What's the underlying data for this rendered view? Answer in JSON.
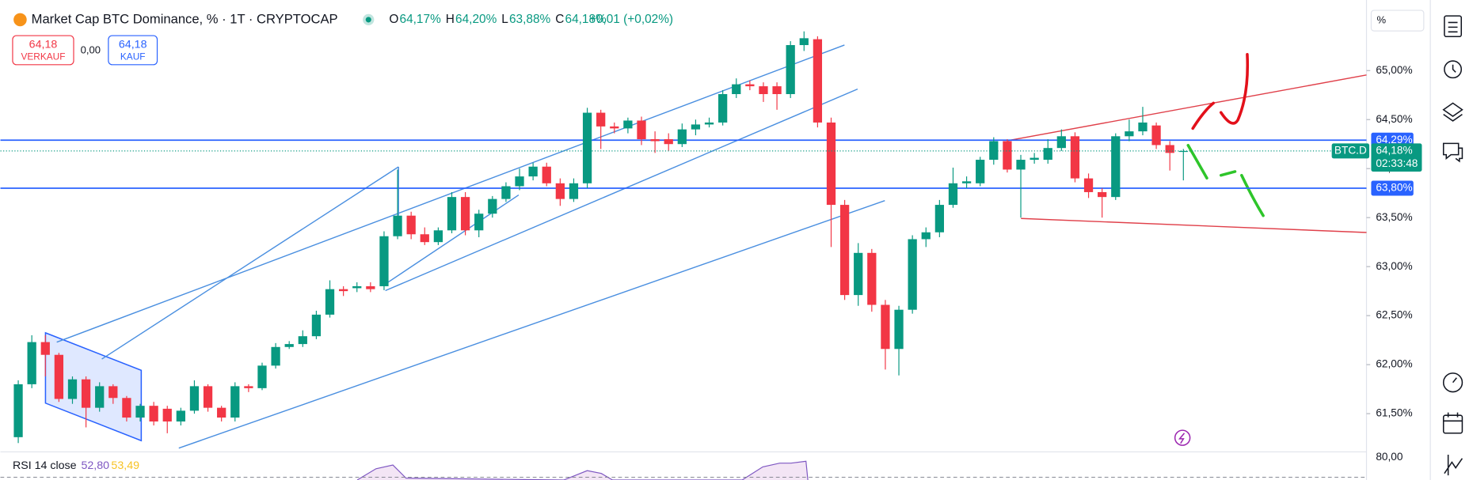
{
  "chart_data": {
    "type": "candlestick",
    "title": "Market Cap BTC Dominance, % · 1T · CRYPTOCAP",
    "ohlc_readout": [
      {
        "key": "O",
        "value": "64,17%"
      },
      {
        "key": "H",
        "value": "64,20%"
      },
      {
        "key": "L",
        "value": "63,88%"
      },
      {
        "key": "C",
        "value": "64,18%"
      }
    ],
    "change": "+0,01 (+0,02%)",
    "trade": {
      "sell_price": "64,18",
      "sell_label": "VERKAUF",
      "spread": "0,00",
      "buy_price": "64,18",
      "buy_label": "KAUF"
    },
    "scale_unit": "%",
    "up_color": "#089981",
    "down_color": "#f23645",
    "open": [
      61.26,
      61.8,
      62.23,
      62.1,
      61.65,
      61.85,
      61.56,
      61.78,
      61.66,
      61.46,
      61.58,
      61.55,
      61.42,
      61.53,
      61.78,
      61.56,
      61.46,
      61.78,
      61.76,
      61.99,
      62.18,
      62.21,
      62.29,
      62.51,
      62.77,
      62.78,
      62.8,
      62.8,
      63.31,
      63.52,
      63.33,
      63.25,
      63.37,
      63.71,
      63.37,
      63.54,
      63.69,
      63.82,
      63.92,
      64.02,
      63.85,
      63.69,
      63.85,
      64.57,
      64.43,
      64.41,
      64.49,
      64.3,
      64.3,
      64.25,
      64.4,
      64.45,
      64.47,
      64.76,
      64.86,
      64.84,
      64.84,
      64.76,
      65.26,
      65.32,
      64.47,
      63.63,
      62.71,
      63.14,
      62.61,
      62.16,
      62.56,
      63.28,
      63.35,
      63.63,
      63.85,
      63.85,
      64.09,
      64.28,
      63.99,
      64.09,
      64.09,
      64.21,
      64.33,
      63.9,
      63.76,
      63.71,
      64.33,
      64.38,
      64.44,
      64.24,
      64.17
    ],
    "high": [
      61.84,
      62.3,
      62.3,
      62.12,
      61.88,
      61.88,
      61.82,
      61.8,
      61.68,
      61.6,
      61.62,
      61.58,
      61.56,
      61.84,
      61.8,
      61.58,
      61.82,
      61.8,
      62.02,
      62.22,
      62.24,
      62.35,
      62.55,
      62.86,
      62.8,
      62.84,
      62.84,
      63.36,
      63.99,
      63.56,
      63.4,
      63.4,
      63.76,
      63.76,
      63.58,
      63.72,
      63.86,
      64.0,
      64.06,
      64.06,
      63.9,
      63.9,
      64.62,
      64.6,
      64.47,
      64.52,
      64.53,
      64.38,
      64.36,
      64.46,
      64.5,
      64.52,
      64.8,
      64.92,
      64.9,
      64.88,
      64.88,
      65.3,
      65.4,
      65.35,
      64.52,
      63.68,
      63.24,
      63.18,
      62.66,
      62.6,
      63.32,
      63.4,
      63.68,
      64.01,
      63.92,
      64.12,
      64.32,
      64.3,
      64.14,
      64.16,
      64.3,
      64.4,
      64.37,
      63.95,
      63.8,
      64.36,
      64.5,
      64.63,
      64.47,
      64.28,
      64.2
    ],
    "low": [
      61.2,
      61.76,
      61.88,
      61.62,
      61.6,
      61.36,
      61.52,
      61.6,
      61.42,
      61.42,
      61.38,
      61.3,
      61.38,
      61.5,
      61.52,
      61.42,
      61.42,
      61.72,
      61.74,
      61.96,
      62.16,
      62.18,
      62.26,
      62.48,
      62.7,
      62.74,
      62.74,
      62.76,
      63.28,
      63.28,
      63.22,
      63.22,
      63.34,
      63.32,
      63.3,
      63.5,
      63.66,
      63.78,
      63.88,
      63.82,
      63.62,
      63.66,
      63.8,
      64.2,
      64.36,
      64.36,
      64.24,
      64.16,
      64.18,
      64.22,
      64.34,
      64.42,
      64.44,
      64.72,
      64.8,
      64.68,
      64.6,
      64.72,
      65.2,
      64.42,
      63.2,
      62.66,
      62.6,
      62.54,
      61.95,
      61.89,
      62.52,
      63.2,
      63.3,
      63.6,
      63.8,
      63.82,
      64.04,
      63.96,
      63.5,
      64.05,
      64.05,
      64.18,
      63.86,
      63.7,
      63.5,
      63.68,
      64.28,
      64.34,
      64.2,
      63.98,
      63.88
    ],
    "close": [
      61.8,
      62.23,
      62.1,
      61.65,
      61.85,
      61.56,
      61.78,
      61.66,
      61.46,
      61.58,
      61.42,
      61.42,
      61.53,
      61.78,
      61.56,
      61.46,
      61.78,
      61.76,
      61.99,
      62.18,
      62.21,
      62.29,
      62.51,
      62.77,
      62.75,
      62.8,
      62.77,
      63.31,
      63.52,
      63.33,
      63.25,
      63.37,
      63.71,
      63.37,
      63.54,
      63.69,
      63.82,
      63.92,
      64.02,
      63.85,
      63.69,
      63.85,
      64.57,
      64.43,
      64.41,
      64.49,
      64.3,
      64.28,
      64.25,
      64.4,
      64.45,
      64.47,
      64.76,
      64.86,
      64.84,
      64.76,
      64.76,
      65.26,
      65.33,
      64.47,
      63.63,
      62.71,
      63.14,
      62.61,
      62.16,
      62.56,
      63.28,
      63.35,
      63.63,
      63.85,
      63.87,
      64.09,
      64.28,
      63.99,
      64.09,
      64.11,
      64.21,
      64.33,
      63.9,
      63.76,
      63.71,
      64.33,
      64.38,
      64.47,
      64.24,
      64.16,
      64.18
    ],
    "ylim": [
      61.11,
      65.72
    ],
    "yticks": [
      {
        "value": 61.5,
        "label": "61,50%"
      },
      {
        "value": 62,
        "label": "62,00%"
      },
      {
        "value": 62.5,
        "label": "62,50%"
      },
      {
        "value": 63,
        "label": "63,00%"
      },
      {
        "value": 63.5,
        "label": "63,50%"
      },
      {
        "value": 64,
        "label": "64,00%"
      },
      {
        "value": 64.5,
        "label": "64,50%"
      },
      {
        "value": 65,
        "label": "65,00%"
      }
    ],
    "horizontal_lines": [
      {
        "value": 64.29,
        "label": "64,29%",
        "color": "#2962ff"
      },
      {
        "value": 63.8,
        "label": "63,80%",
        "color": "#2962ff"
      }
    ],
    "last_price": {
      "value": 64.18,
      "label": "64,18%",
      "symbol": "BTC.D",
      "countdown": "02:33:48"
    },
    "rsi": {
      "label": "RSI 14 close",
      "values": [
        "52,80",
        "53,49"
      ],
      "tick": "80,00"
    }
  }
}
